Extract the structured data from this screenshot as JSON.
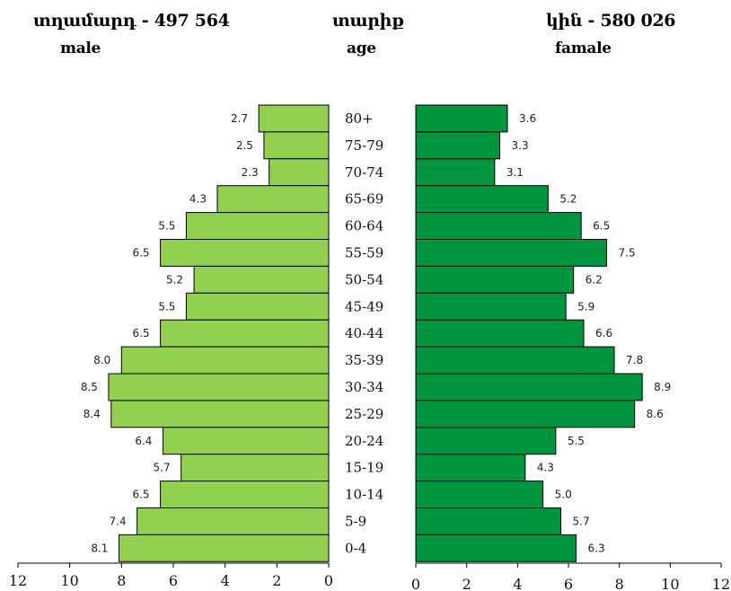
{
  "header": {
    "male_title": "տղամարդ  -  497 564",
    "male_sub": "male",
    "age_title": "տարիք",
    "age_sub": "age",
    "female_title": "կին  - 580 026",
    "female_sub": "famale"
  },
  "chart_data": {
    "type": "bar",
    "orientation": "horizontal-population-pyramid",
    "categories": [
      "80+",
      "75-79",
      "70-74",
      "65-69",
      "60-64",
      "55-59",
      "50-54",
      "45-49",
      "40-44",
      "35-39",
      "30-34",
      "25-29",
      "20-24",
      "15-19",
      "10-14",
      "5-9",
      "0-4"
    ],
    "series": [
      {
        "name": "male",
        "values": [
          2.7,
          2.5,
          2.3,
          4.3,
          5.5,
          6.5,
          5.2,
          5.5,
          6.5,
          8.0,
          8.5,
          8.4,
          6.4,
          5.7,
          6.5,
          7.4,
          8.1
        ]
      },
      {
        "name": "famale",
        "values": [
          3.6,
          3.3,
          3.1,
          5.2,
          6.5,
          7.5,
          6.2,
          5.9,
          6.6,
          7.8,
          8.9,
          8.6,
          5.5,
          4.3,
          5.0,
          5.7,
          6.3
        ]
      }
    ],
    "male_axis_ticks": [
      "12",
      "10",
      "8",
      "6",
      "4",
      "2",
      "0"
    ],
    "female_axis_ticks": [
      "0",
      "2",
      "4",
      "6",
      "8",
      "10",
      "12"
    ],
    "xlim": [
      0,
      12
    ],
    "colors": {
      "male": "#92d050",
      "female": "#00953f",
      "outline": "#000000"
    },
    "grid": false
  }
}
